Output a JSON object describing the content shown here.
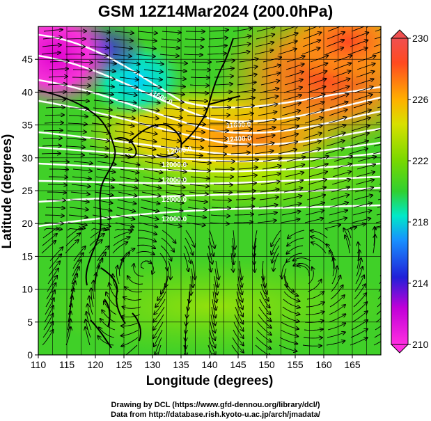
{
  "title": "GSM 12Z14Mar2024 (200.0hPa)",
  "x_axis": {
    "label": "Longitude (degrees)",
    "ticks": [
      "110",
      "115",
      "120",
      "125",
      "130",
      "135",
      "140",
      "145",
      "150",
      "155",
      "160",
      "165"
    ]
  },
  "y_axis": {
    "label": "Latitude  (degrees)",
    "ticks": [
      "0",
      "5",
      "10",
      "15",
      "20",
      "25",
      "30",
      "35",
      "40",
      "45"
    ]
  },
  "colorbar": {
    "ticks": [
      "210",
      "214",
      "218",
      "222",
      "226",
      "230"
    ],
    "colors": [
      "#ff2ee0",
      "#d800d8",
      "#2020d8",
      "#00b4ff",
      "#00e8c0",
      "#30d030",
      "#9ae000",
      "#ffd000",
      "#ff7a10",
      "#ff3030",
      "#f05050"
    ]
  },
  "contour_labels": [
    "12000.0",
    "12000.0",
    "12000.0",
    "12000.0",
    "12000.0",
    "11600.0",
    "11600.0",
    "12400.0"
  ],
  "credits": [
    "Drawing by DCL (https://www.gfd-dennou.org/library/dcl/)",
    "Data from http://database.rish.kyoto-u.ac.jp/arch/jmadata/"
  ],
  "colors": {
    "contour": "#ffffff",
    "coast": "#000000",
    "grid": "#000000"
  }
}
